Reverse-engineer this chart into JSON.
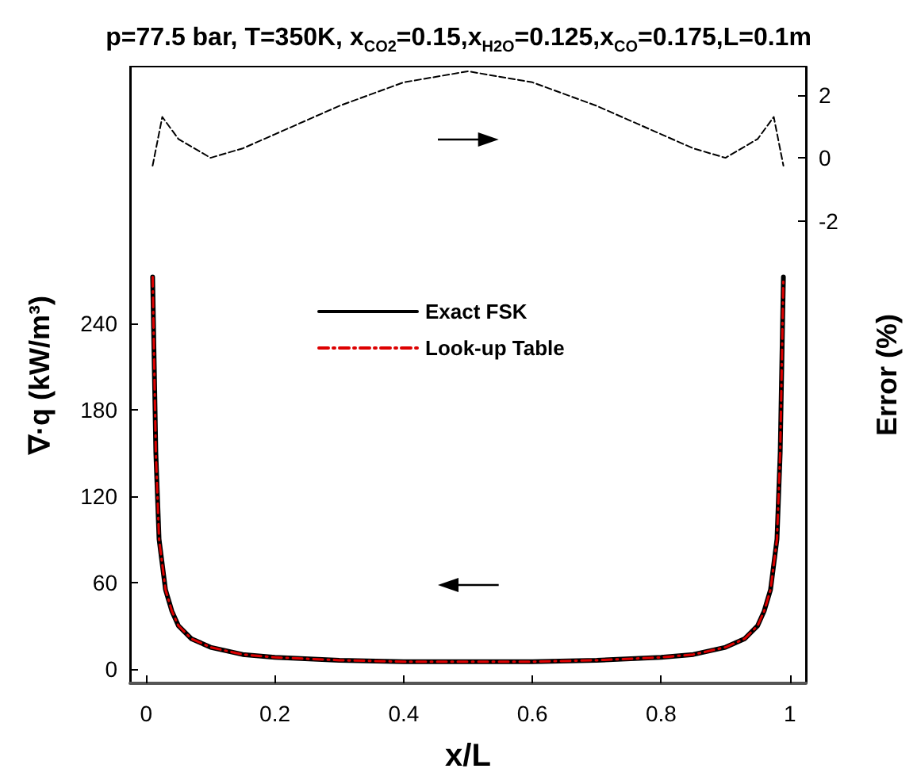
{
  "chart_data": {
    "type": "line",
    "title": "p=77.5 bar, T=350K, x$_{CO2}$=0.15,x$_{H2O}$=0.125,x$_{CO}$=0.175,L=0.1m",
    "xlabel": "x/L",
    "ylabel": "∇·q (kW/m³)",
    "y2label": "Error (%)",
    "xlim": [
      -0.025,
      1.025
    ],
    "xticks": [
      0,
      0.2,
      0.4,
      0.6,
      0.8,
      1
    ],
    "ylim": [
      -10,
      418
    ],
    "yticks": [
      0,
      60,
      120,
      180,
      240
    ],
    "y2lim": [
      -16.7,
      2.9
    ],
    "y2ticks": [
      -2,
      0,
      2
    ],
    "grid": false,
    "legend": "top",
    "marker": "none",
    "series": [
      {
        "name": "Exact FSK",
        "color": "#000000",
        "line_style": "solid",
        "x": [
          0.01,
          0.015,
          0.02,
          0.03,
          0.04,
          0.05,
          0.07,
          0.1,
          0.15,
          0.2,
          0.3,
          0.4,
          0.5,
          0.6,
          0.7,
          0.8,
          0.85,
          0.9,
          0.93,
          0.95,
          0.96,
          0.97,
          0.98,
          0.985,
          0.99
        ],
        "values": [
          272,
          150,
          90,
          55,
          40,
          30,
          21,
          15,
          10,
          8,
          6,
          5,
          5,
          5,
          6,
          8,
          10,
          15,
          21,
          30,
          40,
          55,
          90,
          150,
          272
        ]
      },
      {
        "name": "Look-up Table",
        "color": "#dd0000",
        "line_style": "dashed",
        "x": [
          0.01,
          0.015,
          0.02,
          0.03,
          0.04,
          0.05,
          0.07,
          0.1,
          0.15,
          0.2,
          0.3,
          0.4,
          0.5,
          0.6,
          0.7,
          0.8,
          0.85,
          0.9,
          0.93,
          0.95,
          0.96,
          0.97,
          0.98,
          0.985,
          0.99
        ],
        "values": [
          272,
          150,
          90,
          55,
          40,
          30,
          21,
          15,
          10,
          8,
          6,
          5,
          5,
          5,
          6,
          8,
          10,
          15,
          21,
          30,
          40,
          55,
          90,
          150,
          272
        ]
      },
      {
        "color": "#000000",
        "line_style": "dashed",
        "axis": "y2",
        "x": [
          0.01,
          0.025,
          0.05,
          0.1,
          0.15,
          0.2,
          0.3,
          0.4,
          0.5,
          0.6,
          0.7,
          0.8,
          0.85,
          0.9,
          0.95,
          0.975,
          0.99
        ],
        "values": [
          -0.25,
          1.3,
          0.6,
          0,
          0.3,
          0.75,
          1.65,
          2.4,
          2.75,
          2.4,
          1.65,
          0.75,
          0.3,
          0,
          0.6,
          1.3,
          -0.25
        ]
      }
    ]
  }
}
